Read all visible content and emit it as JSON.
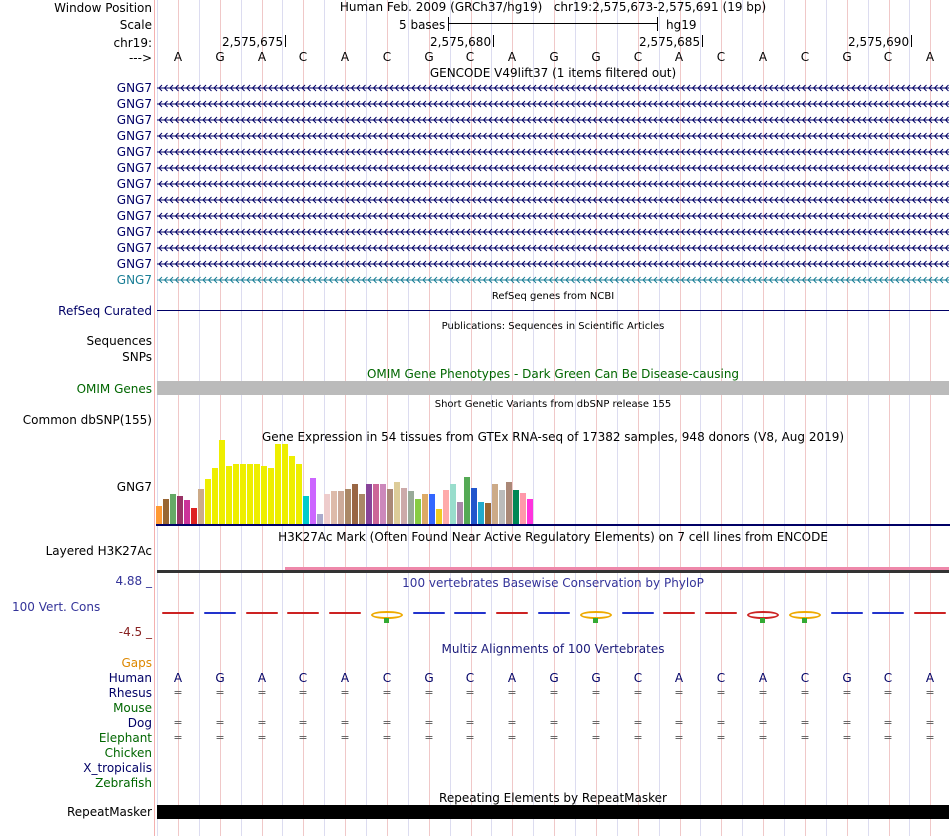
{
  "header": {
    "window_position_label": "Window Position",
    "scale_label": "Scale",
    "chrom_label": "chr19:",
    "arrow_label": "--->",
    "position_text": "Human Feb. 2009 (GRCh37/hg19)   chr19:2,575,673-2,575,691 (19 bp)",
    "scale_text": "5 bases",
    "assembly": "hg19",
    "ticks": [
      "2,575,675",
      "2,575,680",
      "2,575,685",
      "2,575,690"
    ]
  },
  "sequence": [
    "A",
    "G",
    "A",
    "C",
    "A",
    "C",
    "G",
    "C",
    "A",
    "G",
    "G",
    "C",
    "A",
    "C",
    "A",
    "C",
    "G",
    "C",
    "A"
  ],
  "gencode": {
    "title": "GENCODE V49lift37 (1 items filtered out)",
    "genes": [
      "GNG7",
      "GNG7",
      "GNG7",
      "GNG7",
      "GNG7",
      "GNG7",
      "GNG7",
      "GNG7",
      "GNG7",
      "GNG7",
      "GNG7",
      "GNG7",
      "GNG7"
    ]
  },
  "refseq": {
    "label": "RefSeq Curated",
    "title": "RefSeq genes from NCBI"
  },
  "publications": {
    "title": "Publications: Sequences in Scientific Articles",
    "label": "Sequences"
  },
  "snps": {
    "label": "SNPs"
  },
  "omim": {
    "label": "OMIM Genes",
    "title": "OMIM Gene Phenotypes - Dark Green Can Be Disease-causing"
  },
  "dbsnp": {
    "title": "Short Genetic Variants from dbSNP release 155",
    "label": "Common dbSNP(155)"
  },
  "gtex": {
    "title": "Gene Expression in 54 tissues from GTEx RNA-seq of 17382 samples, 948 donors (V8, Aug 2019)",
    "label": "GNG7",
    "values": [
      18,
      25,
      30,
      28,
      24,
      16,
      35,
      45,
      56,
      84,
      58,
      60,
      60,
      60,
      60,
      58,
      56,
      80,
      80,
      68,
      60,
      28,
      46,
      10,
      30,
      33,
      33,
      35,
      40,
      30,
      40,
      40,
      40,
      35,
      42,
      36,
      33,
      25,
      30,
      30,
      15,
      34,
      40,
      22,
      47,
      36,
      22,
      21,
      40,
      34,
      42,
      34,
      31,
      25
    ],
    "colors": [
      "#ff9933",
      "#996633",
      "#66aa66",
      "#993366",
      "#cc3399",
      "#dd2222",
      "#ccaa88",
      "#eeee00",
      "#eeee00",
      "#eeee00",
      "#eeee00",
      "#eeee00",
      "#eeee00",
      "#eeee00",
      "#eeee00",
      "#eeee00",
      "#eeee00",
      "#eeee00",
      "#eeee00",
      "#eeee00",
      "#eeee00",
      "#00cccc",
      "#cc66ff",
      "#aaaacc",
      "#eecccc",
      "#ddbbaa",
      "#ccaa99",
      "#aa8866",
      "#996644",
      "#aa8866",
      "#884499",
      "#cc6699",
      "#cc88bb",
      "#aa8877",
      "#ddcc99",
      "#ccaaaa",
      "#99aa99",
      "#88cc44",
      "#ddaa66",
      "#3366ff",
      "#eecc22",
      "#ffaaaa",
      "#99ddcc",
      "#aa88aa",
      "#55aa55",
      "#2255cc",
      "#22aacc",
      "#996633",
      "#ccaa88",
      "#bbbbbb",
      "#aa8877",
      "#008855",
      "#ff99aa",
      "#ff33dd"
    ]
  },
  "h3k27ac": {
    "label": "Layered H3K27Ac",
    "title": "H3K27Ac Mark (Often Found Near Active Regulatory Elements) on 7 cell lines from ENCODE"
  },
  "conservation": {
    "label": "100 Vert. Cons",
    "max": "4.88 _",
    "min": "-4.5 _",
    "title": "100 vertebrates Basewise Conservation by PhyloP",
    "colors": {
      "a": "#cc2222",
      "c": "#2233cc",
      "g": "#eeaa00",
      "t": "#33aa33"
    }
  },
  "multiz": {
    "title": "Multiz Alignments of 100 Vertebrates",
    "gaps_label": "Gaps",
    "species": [
      "Human",
      "Rhesus",
      "Mouse",
      "Dog",
      "Elephant",
      "Chicken",
      "X_tropicalis",
      "Zebrafish"
    ],
    "eq_symbol": "="
  },
  "repeatmasker": {
    "label": "RepeatMasker",
    "title": "Repeating Elements by RepeatMasker"
  }
}
